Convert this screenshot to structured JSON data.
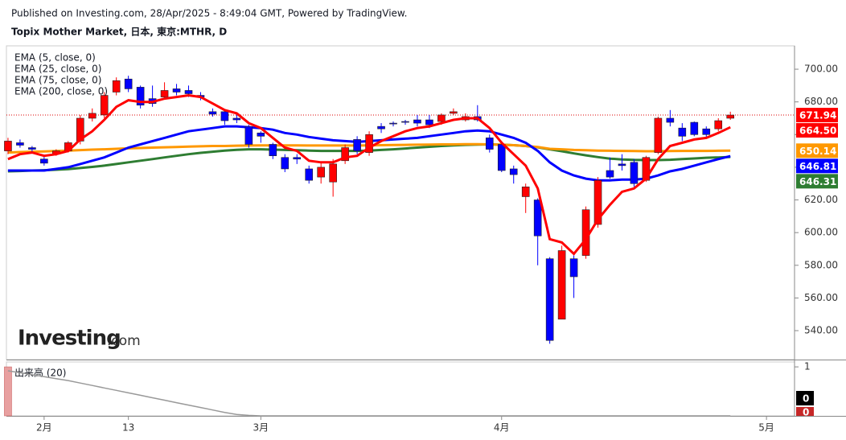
{
  "chart_data": {
    "type": "candlestick",
    "published": "Published on Investing.com, 28/Apr/2025 - 8:49:04 GMT, Powered by TradingView.",
    "title": "Topix Mother Market, 日本, 東京:MTHR, D",
    "watermark": {
      "brand": "Investing",
      "suffix": ".com"
    },
    "up_color": "#ff0000",
    "down_color": "#0000ff",
    "candles": {
      "open": [
        650,
        655,
        652,
        645,
        648,
        650,
        656,
        670,
        672,
        686,
        694,
        689,
        682,
        683,
        688,
        687,
        684,
        674,
        674,
        670,
        665,
        661,
        654,
        646,
        646,
        639,
        634,
        631,
        644,
        657,
        649,
        665,
        667,
        668,
        669,
        669,
        668,
        673,
        669,
        671,
        658,
        654,
        639,
        622,
        620,
        584,
        547,
        584,
        586,
        605,
        638,
        642,
        643,
        632,
        649,
        670,
        664,
        667.5,
        663.5,
        663.5,
        670
      ],
      "high": [
        658,
        657,
        653,
        647,
        651,
        656,
        672,
        676,
        686,
        695,
        696,
        690,
        690,
        692,
        691,
        690,
        686,
        676,
        675,
        672,
        666,
        662,
        655,
        648,
        648,
        641,
        643,
        645,
        654,
        659,
        662,
        667,
        668,
        669,
        672,
        672,
        673,
        676,
        673,
        678,
        660,
        656,
        641,
        630,
        621,
        585,
        592,
        586,
        616,
        634,
        646,
        648,
        645,
        647,
        671,
        675,
        667,
        668,
        665,
        670,
        674
      ],
      "low": [
        648,
        652,
        649,
        641,
        647,
        649,
        654,
        668,
        670,
        684,
        686,
        676,
        677,
        682,
        684,
        683,
        681,
        671,
        666,
        667,
        652,
        655,
        645,
        637,
        642,
        630,
        630,
        622,
        642,
        648,
        647,
        661,
        665,
        666,
        665,
        664,
        666,
        672,
        668,
        668,
        649,
        637,
        630,
        612,
        580,
        532,
        547,
        560,
        584,
        603,
        633,
        638,
        628,
        631,
        648,
        665,
        656,
        659,
        658,
        662,
        669
      ],
      "close": [
        656,
        653.5,
        651,
        642.5,
        650,
        655,
        670,
        673,
        684,
        693,
        688,
        678,
        679,
        687,
        686,
        685,
        683,
        672.5,
        668.5,
        669,
        654,
        659,
        647,
        639,
        645,
        632,
        640,
        642,
        652,
        650,
        660,
        663.5,
        666.5,
        667.5,
        667,
        666,
        672,
        674,
        671,
        669,
        651,
        638,
        635.5,
        628,
        598,
        534,
        589,
        573,
        614,
        632,
        634,
        641,
        630,
        646,
        670,
        667.5,
        659,
        660,
        660,
        668.5,
        671.94
      ]
    },
    "series": [
      {
        "name": "EMA (5, close, 0)",
        "color": "#ff0000",
        "last_label": "664.50",
        "values": [
          645,
          648,
          649,
          647,
          648,
          650,
          657,
          662,
          669,
          677,
          681,
          680,
          680,
          682,
          683,
          684,
          683,
          679,
          675,
          673,
          667,
          664,
          658,
          652,
          650,
          644,
          643,
          643,
          646,
          647,
          652,
          656,
          659,
          662,
          664,
          665,
          667,
          669,
          670,
          670,
          664,
          655,
          648,
          641,
          627,
          596,
          594,
          587,
          596,
          608,
          617,
          625,
          627,
          633,
          645,
          653,
          655,
          657,
          658,
          661,
          664.5
        ]
      },
      {
        "name": "EMA (25, close, 0)",
        "color": "#0000ff",
        "last_label": "646.81",
        "values": [
          638,
          638,
          638,
          638,
          639,
          640,
          642,
          644,
          646,
          649,
          652,
          654,
          656,
          658,
          660,
          662,
          663,
          664,
          665,
          665,
          664.5,
          664,
          663,
          661,
          660,
          658.5,
          657.5,
          656.5,
          656,
          655.5,
          656,
          656.5,
          657,
          657.5,
          658,
          659,
          660,
          661,
          662,
          662.5,
          662,
          660,
          658,
          655,
          650,
          643,
          638,
          635,
          633,
          632,
          632,
          632.5,
          632.5,
          633,
          635,
          637.5,
          639,
          641,
          643,
          645,
          646.81
        ]
      },
      {
        "name": "EMA (75, close, 0)",
        "color": "#ff9800",
        "last_label": "650.14",
        "values": [
          649,
          649.3,
          649.5,
          649.7,
          649.9,
          650.2,
          650.5,
          650.8,
          651,
          651.3,
          651.6,
          651.8,
          652,
          652.2,
          652.4,
          652.6,
          652.8,
          653,
          653,
          653.2,
          653.3,
          653.4,
          653.4,
          653.4,
          653.4,
          653.3,
          653.3,
          653.3,
          653.3,
          653.3,
          653.4,
          653.5,
          653.6,
          653.7,
          653.8,
          653.9,
          654,
          654,
          654.1,
          654.1,
          654,
          653.8,
          653.5,
          653,
          652.4,
          651.3,
          651,
          650.6,
          650.4,
          650.2,
          650.1,
          650,
          649.9,
          649.8,
          649.8,
          649.9,
          650,
          650,
          650,
          650.1,
          650.14
        ]
      },
      {
        "name": "EMA (200, close, 0)",
        "color": "#2e7d32",
        "last_label": "646.31",
        "values": [
          637.5,
          637.7,
          638,
          638.2,
          638.5,
          638.9,
          639.5,
          640.2,
          641,
          642,
          643,
          644,
          645,
          646,
          647,
          648,
          648.8,
          649.5,
          650.2,
          650.7,
          651,
          651,
          650.8,
          650.6,
          650.4,
          650.2,
          650,
          650,
          650,
          650,
          650.2,
          650.6,
          651,
          651.5,
          652,
          652.5,
          653,
          653.4,
          653.7,
          653.9,
          654,
          653.8,
          653.5,
          653,
          652.2,
          651,
          649.8,
          648.5,
          647.3,
          646.2,
          645.3,
          644.8,
          644.5,
          644.4,
          644.4,
          644.6,
          645,
          645.4,
          645.8,
          646,
          646.31
        ]
      }
    ],
    "xlim": [
      -0.13,
      65.33
    ],
    "xticks": [
      {
        "value": 3,
        "label": "2月"
      },
      {
        "value": 10,
        "label": "13"
      },
      {
        "value": 21,
        "label": "3月"
      },
      {
        "value": 41,
        "label": "4月"
      },
      {
        "value": 63,
        "label": "5月"
      }
    ],
    "ylim": [
      522.3,
      714.3
    ],
    "yticks": [
      {
        "value": 540,
        "label": "540.00"
      },
      {
        "value": 560,
        "label": "560.00"
      },
      {
        "value": 580,
        "label": "580.00"
      },
      {
        "value": 600,
        "label": "600.00"
      },
      {
        "value": 620,
        "label": "620.00"
      },
      {
        "value": 640,
        "label": "640.00"
      },
      {
        "value": 660,
        "label": "660.00"
      },
      {
        "value": 680,
        "label": "680.00"
      },
      {
        "value": 700,
        "label": "700.00"
      }
    ],
    "volume": {
      "title": "出来高 (20)",
      "color": "#e8a0a0",
      "ma_color": "#999999",
      "ylim": [
        0,
        1.1
      ],
      "yticks": [
        1
      ],
      "values": [
        1,
        0,
        0,
        0,
        0,
        0,
        0,
        0,
        0,
        0,
        0,
        0,
        0,
        0,
        0,
        0,
        0,
        0,
        0,
        0,
        0,
        0,
        0,
        0,
        0,
        0,
        0,
        0,
        0,
        0,
        0,
        0,
        0,
        0,
        0,
        0,
        0,
        0,
        0,
        0,
        0,
        0,
        0,
        0,
        0,
        0,
        0,
        0,
        0,
        0,
        0,
        0,
        0,
        0,
        0,
        0,
        0,
        0,
        0,
        0,
        0
      ],
      "ma": [
        0.92,
        0.88,
        0.84,
        0.8,
        0.76,
        0.72,
        0.67,
        0.62,
        0.57,
        0.52,
        0.47,
        0.42,
        0.37,
        0.32,
        0.27,
        0.22,
        0.17,
        0.12,
        0.07,
        0.03,
        0.01,
        0,
        0,
        0,
        0,
        0,
        0,
        0,
        0,
        0,
        0,
        0,
        0,
        0,
        0,
        0,
        0,
        0,
        0,
        0,
        0,
        0,
        0,
        0,
        0,
        0,
        0,
        0,
        0,
        0,
        0,
        0,
        0,
        0,
        0,
        0,
        0,
        0,
        0,
        0,
        0
      ]
    }
  }
}
